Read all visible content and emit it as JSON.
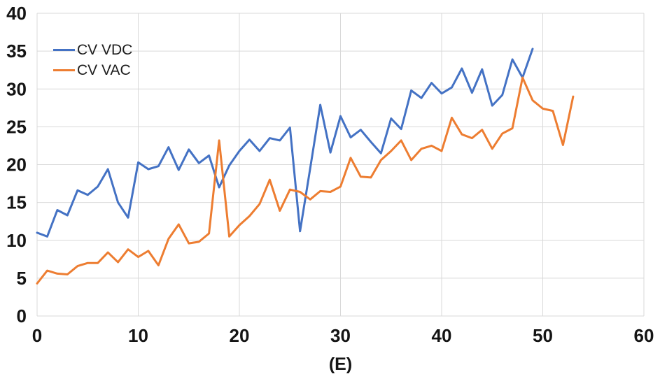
{
  "chart_data": {
    "type": "line",
    "title": "",
    "xlabel": "(E)",
    "ylabel": "",
    "xlim": [
      0,
      60
    ],
    "ylim": [
      0,
      40
    ],
    "x_ticks": [
      0,
      10,
      20,
      30,
      40,
      50,
      60
    ],
    "y_ticks": [
      0,
      5,
      10,
      15,
      20,
      25,
      30,
      35,
      40
    ],
    "grid": true,
    "grid_color": "#D9D9D9",
    "legend_position": "top-left-inside",
    "series": [
      {
        "name": "CV VDC",
        "color": "#4472C4",
        "x_start": 0,
        "x_step": 1,
        "values": [
          11,
          10.5,
          14,
          13.3,
          16.6,
          16,
          17.1,
          19.4,
          15,
          13,
          20.3,
          19.4,
          19.8,
          22.3,
          19.3,
          22,
          20.2,
          21.2,
          17,
          19.9,
          21.8,
          23.3,
          21.8,
          23.5,
          23.2,
          24.9,
          11.2,
          19.5,
          27.9,
          21.6,
          26.4,
          23.6,
          24.6,
          23,
          21.5,
          26.1,
          24.7,
          29.8,
          28.8,
          30.8,
          29.4,
          30.2,
          32.7,
          29.5,
          32.6,
          27.8,
          29.2,
          33.9,
          31.5,
          35.3
        ]
      },
      {
        "name": "CV VAC",
        "color": "#ED7D31",
        "x_start": 0,
        "x_step": 1,
        "values": [
          4.3,
          6,
          5.6,
          5.5,
          6.6,
          7,
          7,
          8.4,
          7.1,
          8.8,
          7.8,
          8.6,
          6.7,
          10.2,
          12.1,
          9.6,
          9.8,
          10.9,
          23.2,
          10.5,
          12,
          13.2,
          14.8,
          18,
          13.9,
          16.7,
          16.4,
          15.4,
          16.5,
          16.4,
          17.1,
          20.9,
          18.4,
          18.3,
          20.6,
          21.8,
          23.2,
          20.6,
          22.1,
          22.5,
          21.8,
          26.2,
          24,
          23.5,
          24.6,
          22.1,
          24.1,
          24.8,
          31.5,
          28.5,
          27.4,
          27.1,
          22.6,
          29
        ]
      }
    ]
  }
}
